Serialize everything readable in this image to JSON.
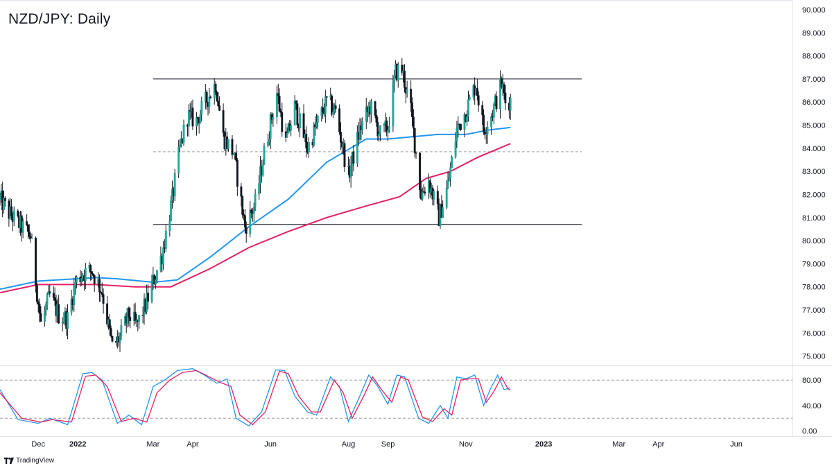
{
  "title": "NZD/JPY: Daily",
  "branding": "TradingView",
  "colors": {
    "up": "#26a69a",
    "down": "#131722",
    "wick": "#131722",
    "ma_short": "#2196f3",
    "ma_long": "#e91e63",
    "stoch_k": "#2196f3",
    "stoch_d": "#e91e63",
    "level_line": "#131722",
    "mid_line": "#9e9e9e",
    "grid": "#e0e3eb"
  },
  "chart_data": [
    {
      "type": "candlestick",
      "title": "NZD/JPY: Daily",
      "ylim": [
        74.6,
        90.3
      ],
      "y_ticks": [
        "90.000",
        "89.000",
        "88.000",
        "87.000",
        "86.000",
        "85.000",
        "84.000",
        "83.000",
        "82.000",
        "81.000",
        "80.000",
        "79.000",
        "78.000",
        "77.000",
        "76.000",
        "75.000"
      ],
      "x_ticks": [
        "Dec",
        "2022",
        "Mar",
        "Apr",
        "Jun",
        "Aug",
        "Sep",
        "Nov",
        "2023",
        "Mar",
        "Apr",
        "Jun"
      ],
      "x_range": [
        "2021-11-01",
        "2023-07-15"
      ],
      "price_path": [
        [
          "2021-11-01",
          81.8
        ],
        [
          "2021-11-08",
          81.2
        ],
        [
          "2021-11-18",
          80.6
        ],
        [
          "2021-11-25",
          80.2
        ],
        [
          "2021-11-30",
          77.8
        ],
        [
          "2021-12-03",
          76.4
        ],
        [
          "2021-12-10",
          77.6
        ],
        [
          "2021-12-17",
          76.8
        ],
        [
          "2021-12-24",
          76.6
        ],
        [
          "2021-12-30",
          78.2
        ],
        [
          "2022-01-05",
          78.6
        ],
        [
          "2022-01-12",
          78.7
        ],
        [
          "2022-01-20",
          77.8
        ],
        [
          "2022-01-28",
          75.4
        ],
        [
          "2022-02-03",
          75.8
        ],
        [
          "2022-02-10",
          76.8
        ],
        [
          "2022-02-16",
          76.3
        ],
        [
          "2022-02-23",
          77.2
        ],
        [
          "2022-03-01",
          78.2
        ],
        [
          "2022-03-08",
          79.4
        ],
        [
          "2022-03-16",
          81.8
        ],
        [
          "2022-03-22",
          84.0
        ],
        [
          "2022-03-28",
          85.4
        ],
        [
          "2022-04-04",
          85.2
        ],
        [
          "2022-04-11",
          86.0
        ],
        [
          "2022-04-19",
          86.8
        ],
        [
          "2022-04-25",
          84.5
        ],
        [
          "2022-05-03",
          83.8
        ],
        [
          "2022-05-12",
          80.6
        ],
        [
          "2022-05-20",
          81.6
        ],
        [
          "2022-05-27",
          83.8
        ],
        [
          "2022-06-06",
          86.4
        ],
        [
          "2022-06-13",
          84.2
        ],
        [
          "2022-06-20",
          85.8
        ],
        [
          "2022-06-30",
          84.0
        ],
        [
          "2022-07-07",
          85.0
        ],
        [
          "2022-07-15",
          86.0
        ],
        [
          "2022-07-22",
          85.6
        ],
        [
          "2022-08-01",
          82.8
        ],
        [
          "2022-08-10",
          84.8
        ],
        [
          "2022-08-18",
          85.8
        ],
        [
          "2022-08-26",
          84.6
        ],
        [
          "2022-09-01",
          84.9
        ],
        [
          "2022-09-07",
          87.3
        ],
        [
          "2022-09-12",
          87.4
        ],
        [
          "2022-09-19",
          85.6
        ],
        [
          "2022-09-27",
          82.0
        ],
        [
          "2022-10-03",
          82.6
        ],
        [
          "2022-10-11",
          81.0
        ],
        [
          "2022-10-18",
          82.4
        ],
        [
          "2022-10-25",
          84.8
        ],
        [
          "2022-11-01",
          85.6
        ],
        [
          "2022-11-09",
          86.8
        ],
        [
          "2022-11-15",
          84.8
        ],
        [
          "2022-11-22",
          85.6
        ],
        [
          "2022-11-29",
          86.8
        ],
        [
          "2022-12-02",
          86.0
        ],
        [
          "2022-12-06",
          86.1
        ]
      ],
      "moving_averages": [
        {
          "color": "#2196f3",
          "points": [
            [
              "2021-11-01",
              77.9
            ],
            [
              "2021-12-01",
              78.25
            ],
            [
              "2022-01-15",
              78.4
            ],
            [
              "2022-02-01",
              78.35
            ],
            [
              "2022-03-01",
              78.2
            ],
            [
              "2022-03-20",
              78.3
            ],
            [
              "2022-04-15",
              79.3
            ],
            [
              "2022-05-15",
              80.6
            ],
            [
              "2022-06-15",
              81.8
            ],
            [
              "2022-07-15",
              83.4
            ],
            [
              "2022-08-15",
              84.4
            ],
            [
              "2022-09-01",
              84.4
            ],
            [
              "2022-09-20",
              84.5
            ],
            [
              "2022-10-10",
              84.6
            ],
            [
              "2022-11-01",
              84.6
            ],
            [
              "2022-11-20",
              84.8
            ],
            [
              "2022-12-06",
              84.9
            ]
          ]
        },
        {
          "color": "#e91e63",
          "points": [
            [
              "2021-11-01",
              77.75
            ],
            [
              "2021-12-01",
              78.1
            ],
            [
              "2022-01-15",
              78.1
            ],
            [
              "2022-02-15",
              78.0
            ],
            [
              "2022-03-15",
              78.0
            ],
            [
              "2022-04-15",
              78.8
            ],
            [
              "2022-05-15",
              79.7
            ],
            [
              "2022-06-15",
              80.4
            ],
            [
              "2022-07-15",
              81.0
            ],
            [
              "2022-08-15",
              81.5
            ],
            [
              "2022-09-10",
              81.9
            ],
            [
              "2022-10-01",
              82.7
            ],
            [
              "2022-10-20",
              83.0
            ],
            [
              "2022-11-10",
              83.6
            ],
            [
              "2022-12-06",
              84.2
            ]
          ]
        }
      ],
      "horizontal_levels": [
        {
          "value": 87.0,
          "style": "solid",
          "from": "2022-03-01",
          "to": "2023-01-31"
        },
        {
          "value": 80.7,
          "style": "solid",
          "from": "2022-03-01",
          "to": "2023-01-31"
        },
        {
          "value": 83.85,
          "style": "dashed",
          "from": "2022-03-01",
          "to": "2023-01-31"
        }
      ]
    },
    {
      "type": "line",
      "ylim": [
        -8,
        102
      ],
      "y_ticks": [
        "80.00",
        "40.00",
        "0.00"
      ],
      "levels": [
        80,
        20
      ],
      "series": [
        {
          "color": "#2196f3",
          "points": [
            [
              "2021-11-01",
              65
            ],
            [
              "2021-11-15",
              18
            ],
            [
              "2021-12-01",
              12
            ],
            [
              "2021-12-10",
              20
            ],
            [
              "2021-12-24",
              10
            ],
            [
              "2022-01-05",
              90
            ],
            [
              "2022-01-12",
              92
            ],
            [
              "2022-01-20",
              80
            ],
            [
              "2022-02-01",
              12
            ],
            [
              "2022-02-10",
              25
            ],
            [
              "2022-02-20",
              10
            ],
            [
              "2022-03-01",
              70
            ],
            [
              "2022-03-10",
              80
            ],
            [
              "2022-03-20",
              95
            ],
            [
              "2022-04-01",
              98
            ],
            [
              "2022-04-10",
              88
            ],
            [
              "2022-04-20",
              75
            ],
            [
              "2022-04-28",
              82
            ],
            [
              "2022-05-05",
              20
            ],
            [
              "2022-05-15",
              8
            ],
            [
              "2022-05-25",
              30
            ],
            [
              "2022-06-05",
              96
            ],
            [
              "2022-06-12",
              95
            ],
            [
              "2022-06-20",
              55
            ],
            [
              "2022-06-30",
              30
            ],
            [
              "2022-07-07",
              25
            ],
            [
              "2022-07-18",
              85
            ],
            [
              "2022-07-25",
              70
            ],
            [
              "2022-08-01",
              15
            ],
            [
              "2022-08-10",
              55
            ],
            [
              "2022-08-17",
              88
            ],
            [
              "2022-08-24",
              70
            ],
            [
              "2022-09-01",
              42
            ],
            [
              "2022-09-08",
              88
            ],
            [
              "2022-09-14",
              85
            ],
            [
              "2022-09-25",
              20
            ],
            [
              "2022-10-03",
              12
            ],
            [
              "2022-10-12",
              40
            ],
            [
              "2022-10-18",
              20
            ],
            [
              "2022-10-25",
              85
            ],
            [
              "2022-11-01",
              82
            ],
            [
              "2022-11-08",
              88
            ],
            [
              "2022-11-15",
              40
            ],
            [
              "2022-11-20",
              65
            ],
            [
              "2022-11-26",
              88
            ],
            [
              "2022-12-01",
              65
            ],
            [
              "2022-12-06",
              68
            ]
          ]
        },
        {
          "color": "#e91e63",
          "points": [
            [
              "2021-11-01",
              60
            ],
            [
              "2021-11-18",
              20
            ],
            [
              "2021-12-03",
              14
            ],
            [
              "2021-12-12",
              18
            ],
            [
              "2021-12-27",
              14
            ],
            [
              "2022-01-07",
              86
            ],
            [
              "2022-01-15",
              88
            ],
            [
              "2022-01-24",
              70
            ],
            [
              "2022-02-04",
              15
            ],
            [
              "2022-02-14",
              20
            ],
            [
              "2022-02-24",
              14
            ],
            [
              "2022-03-04",
              60
            ],
            [
              "2022-03-14",
              80
            ],
            [
              "2022-03-24",
              92
            ],
            [
              "2022-04-04",
              95
            ],
            [
              "2022-04-13",
              86
            ],
            [
              "2022-04-23",
              76
            ],
            [
              "2022-05-01",
              70
            ],
            [
              "2022-05-08",
              25
            ],
            [
              "2022-05-18",
              10
            ],
            [
              "2022-05-28",
              30
            ],
            [
              "2022-06-08",
              94
            ],
            [
              "2022-06-15",
              90
            ],
            [
              "2022-06-23",
              55
            ],
            [
              "2022-07-03",
              30
            ],
            [
              "2022-07-10",
              30
            ],
            [
              "2022-07-21",
              80
            ],
            [
              "2022-07-28",
              60
            ],
            [
              "2022-08-04",
              20
            ],
            [
              "2022-08-13",
              55
            ],
            [
              "2022-08-20",
              85
            ],
            [
              "2022-08-27",
              65
            ],
            [
              "2022-09-04",
              45
            ],
            [
              "2022-09-11",
              85
            ],
            [
              "2022-09-17",
              80
            ],
            [
              "2022-09-28",
              22
            ],
            [
              "2022-10-06",
              15
            ],
            [
              "2022-10-15",
              35
            ],
            [
              "2022-10-21",
              25
            ],
            [
              "2022-10-28",
              80
            ],
            [
              "2022-11-04",
              82
            ],
            [
              "2022-11-11",
              82
            ],
            [
              "2022-11-17",
              45
            ],
            [
              "2022-11-23",
              62
            ],
            [
              "2022-11-29",
              85
            ],
            [
              "2022-12-04",
              66
            ],
            [
              "2022-12-06",
              65
            ]
          ]
        }
      ]
    }
  ]
}
